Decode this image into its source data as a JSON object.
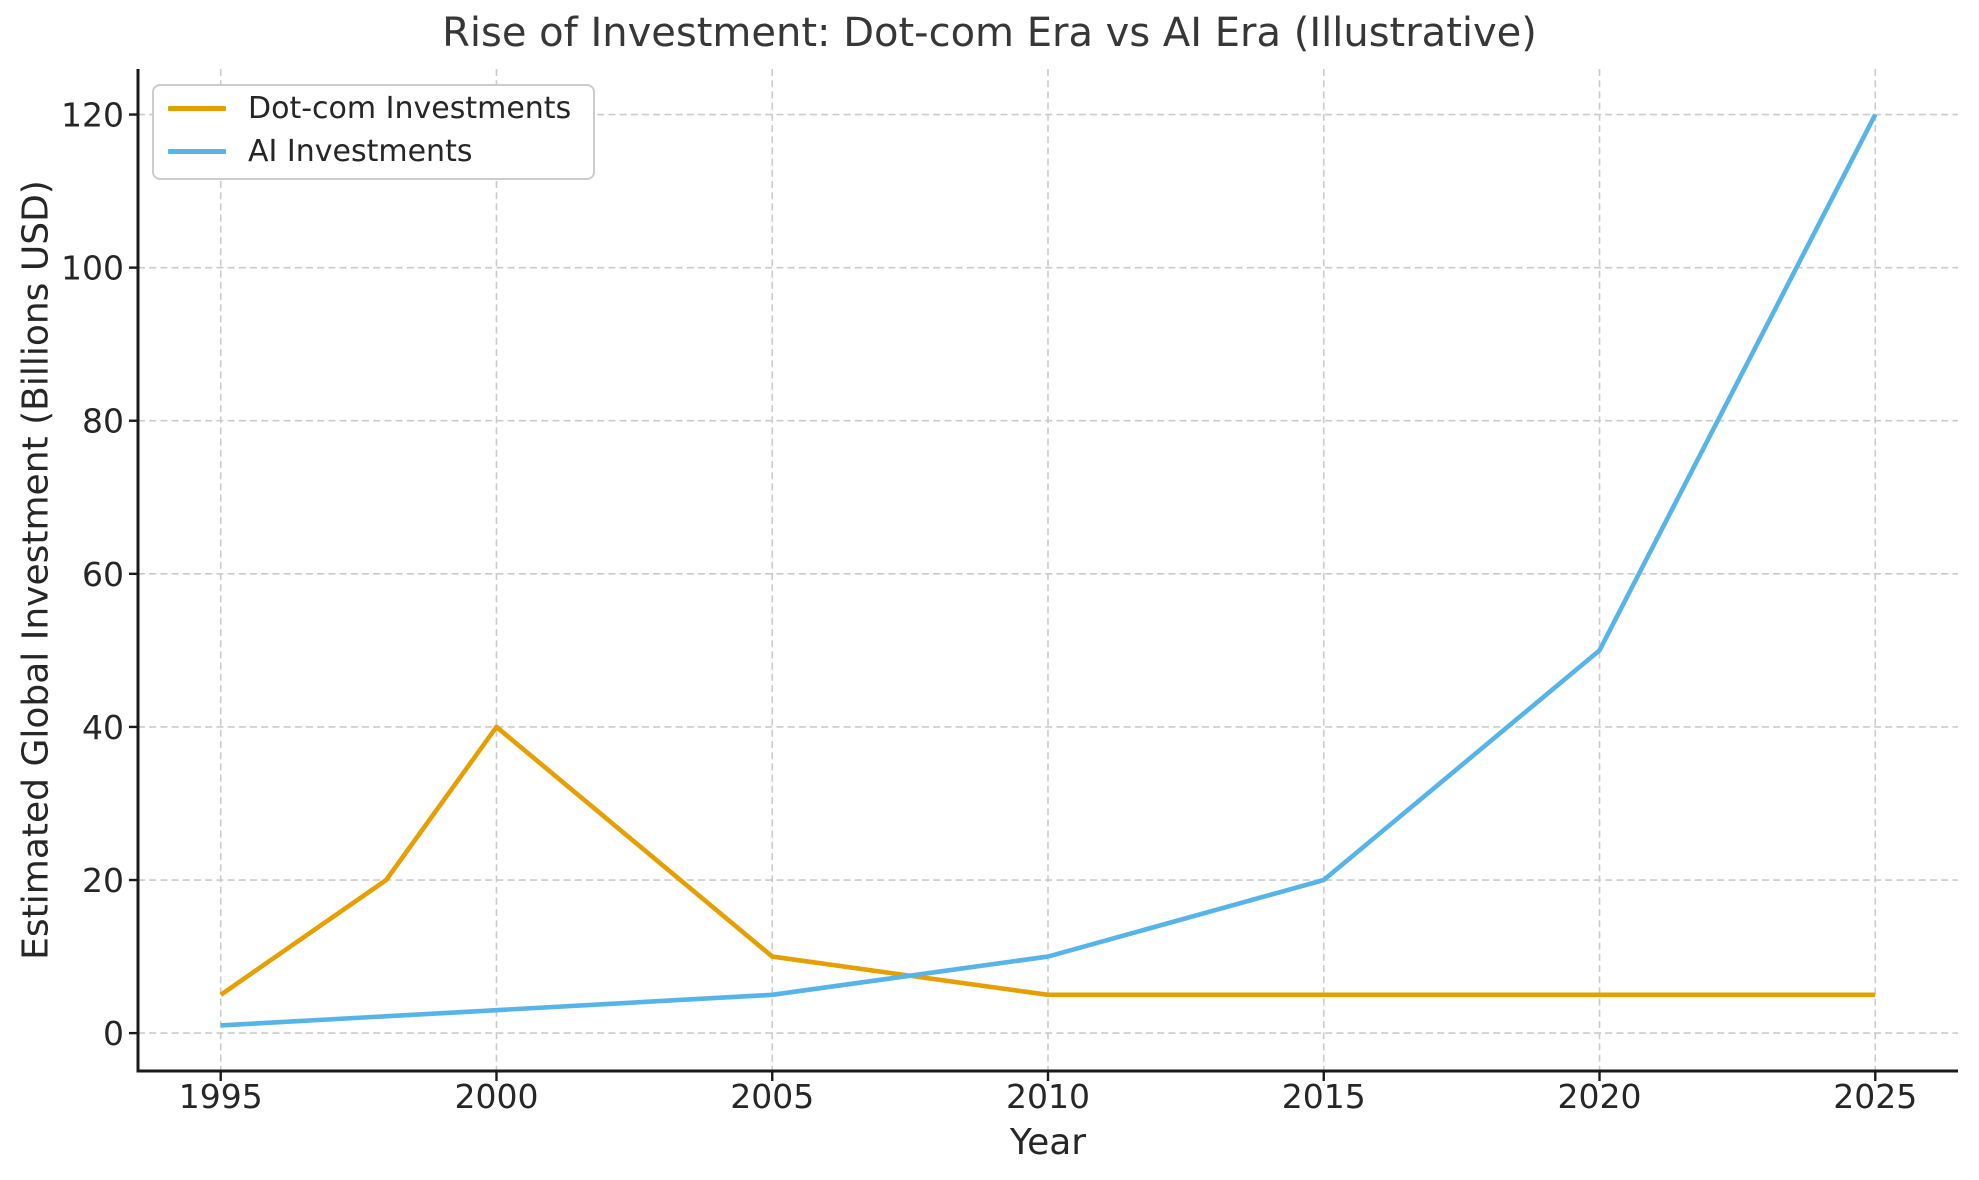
{
  "chart_data": {
    "type": "line",
    "title": "Rise of Investment: Dot-com Era vs AI Era (Illustrative)",
    "xlabel": "Year",
    "ylabel": "Estimated Global Investment (Billions USD)",
    "x_ticks": [
      1995,
      2000,
      2005,
      2010,
      2015,
      2020,
      2025
    ],
    "y_ticks": [
      0,
      20,
      40,
      60,
      80,
      100,
      120
    ],
    "xlim": [
      1993.5,
      2026.5
    ],
    "ylim": [
      -4.95,
      125.95
    ],
    "grid": true,
    "grid_style": "dashed",
    "grid_color": "#cbcbcb",
    "axis_text_color": "#262626",
    "legend_position": "upper left",
    "series": [
      {
        "name": "Dot-com Investments",
        "color": "#E69F00",
        "x": [
          1995,
          1998,
          2000,
          2005,
          2010,
          2015,
          2020,
          2025
        ],
        "y": [
          5,
          20,
          40,
          10,
          5,
          5,
          5,
          5
        ]
      },
      {
        "name": "AI Investments",
        "color": "#56B4E9",
        "x": [
          1995,
          2000,
          2005,
          2010,
          2015,
          2020,
          2025
        ],
        "y": [
          1,
          3,
          5,
          10,
          20,
          50,
          120
        ]
      }
    ]
  }
}
